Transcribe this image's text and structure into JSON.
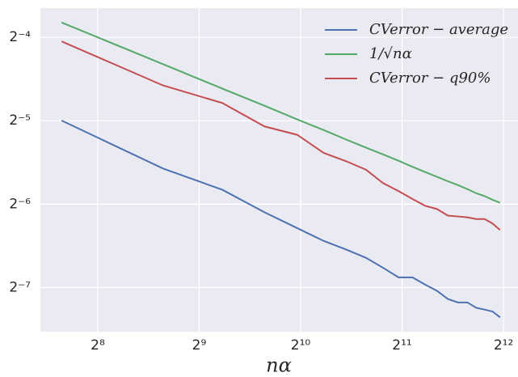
{
  "chart_data": {
    "type": "line",
    "x_label": "nα",
    "x": [
      200,
      400,
      600,
      800,
      1000,
      1200,
      1400,
      1600,
      1800,
      2000,
      2200,
      2400,
      2600,
      2800,
      3000,
      3200,
      3400,
      3600,
      3800,
      4000
    ],
    "series": [
      {
        "name": "CVerror − average",
        "color": "#4c72b0",
        "values": [
          0.0313,
          0.021,
          0.0176,
          0.0146,
          0.0128,
          0.0115,
          0.0107,
          0.01,
          0.0092,
          0.0085,
          0.0085,
          0.008,
          0.0076,
          0.0071,
          0.0069,
          0.0069,
          0.0066,
          0.0065,
          0.0064,
          0.0061
        ]
      },
      {
        "name": "1/√nα",
        "color": "#55a868",
        "values": [
          0.0707,
          0.05,
          0.0408,
          0.0354,
          0.0316,
          0.0289,
          0.0267,
          0.025,
          0.0236,
          0.0224,
          0.0213,
          0.0204,
          0.0196,
          0.0189,
          0.0183,
          0.0177,
          0.0171,
          0.0167,
          0.0162,
          0.0158
        ]
      },
      {
        "name": "CVerror − q90%",
        "color": "#c44e52",
        "values": [
          0.0604,
          0.0419,
          0.0362,
          0.0298,
          0.0278,
          0.0239,
          0.0223,
          0.0208,
          0.0186,
          0.0174,
          0.0163,
          0.0154,
          0.015,
          0.0142,
          0.0141,
          0.014,
          0.0138,
          0.0138,
          0.0133,
          0.0126
        ]
      }
    ],
    "xlim": [
      173,
      4523
    ],
    "ylim": [
      0.00541,
      0.0797
    ],
    "xticks": [
      {
        "value": 256,
        "label": "2⁸"
      },
      {
        "value": 512,
        "label": "2⁹"
      },
      {
        "value": 1024,
        "label": "2¹⁰"
      },
      {
        "value": 2048,
        "label": "2¹¹"
      },
      {
        "value": 4096,
        "label": "2¹²"
      }
    ],
    "yticks": [
      {
        "value": 0.0078125,
        "label": "2⁻⁷"
      },
      {
        "value": 0.015625,
        "label": "2⁻⁶"
      },
      {
        "value": 0.03125,
        "label": "2⁻⁵"
      },
      {
        "value": 0.0625,
        "label": "2⁻⁴"
      }
    ],
    "log_x": true,
    "log_y": true,
    "grid": true,
    "legend": "upper right"
  }
}
